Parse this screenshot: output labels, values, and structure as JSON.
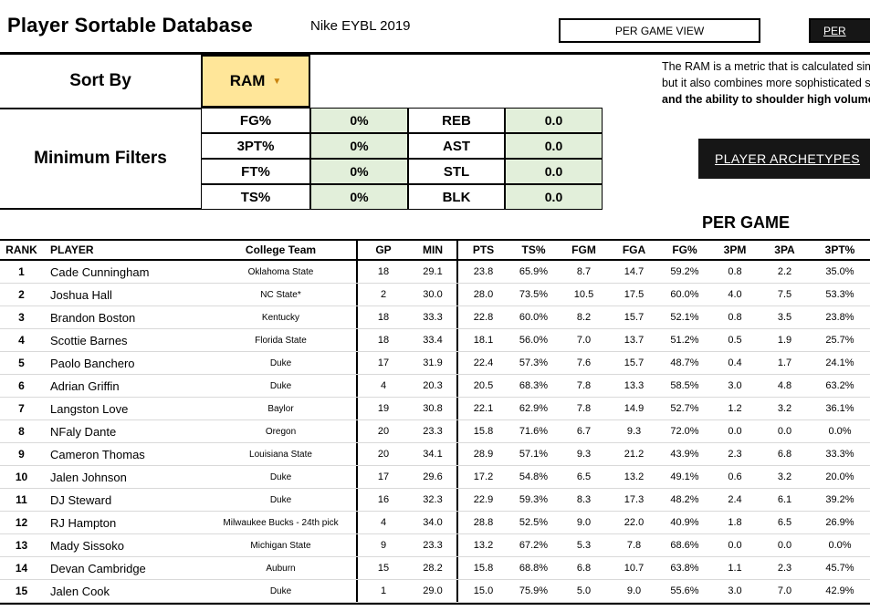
{
  "header": {
    "title": "Player Sortable Database",
    "subtitle": "Nike EYBL 2019",
    "per_game_view_button": "PER GAME VIEW",
    "alt_view_button": "PER"
  },
  "sort": {
    "label": "Sort By",
    "value": "RAM"
  },
  "ram_note": {
    "line1": "The RAM is a metric that is calculated similarly",
    "line2": "but it also combines more sophisticated stats",
    "line3": "and the ability to shoulder high volume"
  },
  "filters": {
    "label": "Minimum Filters",
    "rows": [
      {
        "left_label": "FG%",
        "left_value": "0%",
        "right_label": "REB",
        "right_value": "0.0"
      },
      {
        "left_label": "3PT%",
        "left_value": "0%",
        "right_label": "AST",
        "right_value": "0.0"
      },
      {
        "left_label": "FT%",
        "left_value": "0%",
        "right_label": "STL",
        "right_value": "0.0"
      },
      {
        "left_label": "TS%",
        "left_value": "0%",
        "right_label": "BLK",
        "right_value": "0.0"
      }
    ]
  },
  "archetype_button_label": "PLAYER ARCHETYPES",
  "table": {
    "section_title": "PER GAME",
    "columns": [
      "RANK",
      "PLAYER",
      "College Team",
      "GP",
      "MIN",
      "PTS",
      "TS%",
      "FGM",
      "FGA",
      "FG%",
      "3PM",
      "3PA",
      "3PT%"
    ],
    "rows": [
      [
        "1",
        "Cade Cunningham",
        "Oklahoma State",
        "18",
        "29.1",
        "23.8",
        "65.9%",
        "8.7",
        "14.7",
        "59.2%",
        "0.8",
        "2.2",
        "35.0%"
      ],
      [
        "2",
        "Joshua Hall",
        "NC State*",
        "2",
        "30.0",
        "28.0",
        "73.5%",
        "10.5",
        "17.5",
        "60.0%",
        "4.0",
        "7.5",
        "53.3%"
      ],
      [
        "3",
        "Brandon Boston",
        "Kentucky",
        "18",
        "33.3",
        "22.8",
        "60.0%",
        "8.2",
        "15.7",
        "52.1%",
        "0.8",
        "3.5",
        "23.8%"
      ],
      [
        "4",
        "Scottie Barnes",
        "Florida State",
        "18",
        "33.4",
        "18.1",
        "56.0%",
        "7.0",
        "13.7",
        "51.2%",
        "0.5",
        "1.9",
        "25.7%"
      ],
      [
        "5",
        "Paolo Banchero",
        "Duke",
        "17",
        "31.9",
        "22.4",
        "57.3%",
        "7.6",
        "15.7",
        "48.7%",
        "0.4",
        "1.7",
        "24.1%"
      ],
      [
        "6",
        "Adrian Griffin",
        "Duke",
        "4",
        "20.3",
        "20.5",
        "68.3%",
        "7.8",
        "13.3",
        "58.5%",
        "3.0",
        "4.8",
        "63.2%"
      ],
      [
        "7",
        "Langston Love",
        "Baylor",
        "19",
        "30.8",
        "22.1",
        "62.9%",
        "7.8",
        "14.9",
        "52.7%",
        "1.2",
        "3.2",
        "36.1%"
      ],
      [
        "8",
        "NFaly Dante",
        "Oregon",
        "20",
        "23.3",
        "15.8",
        "71.6%",
        "6.7",
        "9.3",
        "72.0%",
        "0.0",
        "0.0",
        "0.0%"
      ],
      [
        "9",
        "Cameron Thomas",
        "Louisiana State",
        "20",
        "34.1",
        "28.9",
        "57.1%",
        "9.3",
        "21.2",
        "43.9%",
        "2.3",
        "6.8",
        "33.3%"
      ],
      [
        "10",
        "Jalen Johnson",
        "Duke",
        "17",
        "29.6",
        "17.2",
        "54.8%",
        "6.5",
        "13.2",
        "49.1%",
        "0.6",
        "3.2",
        "20.0%"
      ],
      [
        "11",
        "DJ Steward",
        "Duke",
        "16",
        "32.3",
        "22.9",
        "59.3%",
        "8.3",
        "17.3",
        "48.2%",
        "2.4",
        "6.1",
        "39.2%"
      ],
      [
        "12",
        "RJ Hampton",
        "Milwaukee Bucks - 24th pick",
        "4",
        "34.0",
        "28.8",
        "52.5%",
        "9.0",
        "22.0",
        "40.9%",
        "1.8",
        "6.5",
        "26.9%"
      ],
      [
        "13",
        "Mady Sissoko",
        "Michigan State",
        "9",
        "23.3",
        "13.2",
        "67.2%",
        "5.3",
        "7.8",
        "68.6%",
        "0.0",
        "0.0",
        "0.0%"
      ],
      [
        "14",
        "Devan Cambridge",
        "Auburn",
        "15",
        "28.2",
        "15.8",
        "68.8%",
        "6.8",
        "10.7",
        "63.8%",
        "1.1",
        "2.3",
        "45.7%"
      ],
      [
        "15",
        "Jalen Cook",
        "Duke",
        "1",
        "29.0",
        "15.0",
        "75.9%",
        "5.0",
        "9.0",
        "55.6%",
        "3.0",
        "7.0",
        "42.9%"
      ]
    ]
  },
  "colors": {
    "dropdown_bg": "#ffe699",
    "filter_value_bg": "#e2efda",
    "dark_button_bg": "#161616",
    "accent_arrow": "#c9820e"
  }
}
